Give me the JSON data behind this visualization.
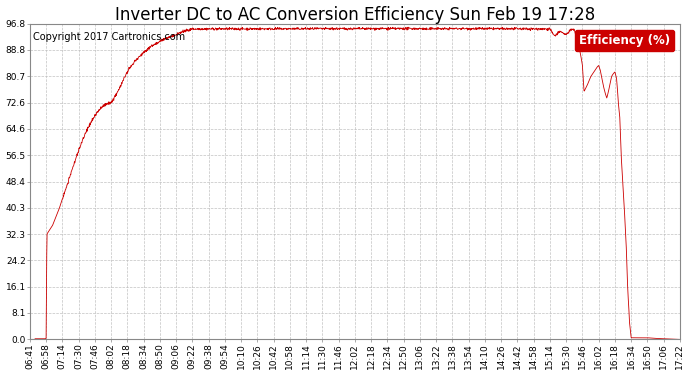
{
  "title": "Inverter DC to AC Conversion Efficiency Sun Feb 19 17:28",
  "copyright": "Copyright 2017 Cartronics.com",
  "legend_label": "Efficiency (%)",
  "legend_bg": "#cc0000",
  "legend_fg": "#ffffff",
  "line_color": "#cc0000",
  "bg_color": "#ffffff",
  "plot_bg": "#ffffff",
  "grid_color": "#bbbbbb",
  "ytick_labels": [
    "0.0",
    "8.1",
    "16.1",
    "24.2",
    "32.3",
    "40.3",
    "48.4",
    "56.5",
    "64.6",
    "72.6",
    "80.7",
    "88.8",
    "96.8"
  ],
  "ytick_values": [
    0.0,
    8.1,
    16.1,
    24.2,
    32.3,
    40.3,
    48.4,
    56.5,
    64.6,
    72.6,
    80.7,
    88.8,
    96.8
  ],
  "ymin": 0.0,
  "ymax": 96.8,
  "xtick_labels": [
    "06:41",
    "06:58",
    "07:14",
    "07:30",
    "07:46",
    "08:02",
    "08:18",
    "08:34",
    "08:50",
    "09:06",
    "09:22",
    "09:38",
    "09:54",
    "10:10",
    "10:26",
    "10:42",
    "10:58",
    "11:14",
    "11:30",
    "11:46",
    "12:02",
    "12:18",
    "12:34",
    "12:50",
    "13:06",
    "13:22",
    "13:38",
    "13:54",
    "14:10",
    "14:26",
    "14:42",
    "14:58",
    "15:14",
    "15:30",
    "15:46",
    "16:02",
    "16:18",
    "16:34",
    "16:50",
    "17:06",
    "17:22"
  ],
  "title_fontsize": 12,
  "copyright_fontsize": 7,
  "axis_fontsize": 6.5,
  "legend_fontsize": 8.5,
  "key_t": [
    0,
    0.3,
    0.31,
    1.0,
    1.05,
    1.4,
    1.8,
    2.2,
    2.6,
    3.0,
    3.4,
    3.8,
    4.2,
    4.6,
    5.0,
    5.3,
    5.6,
    6.0,
    6.5,
    7.0,
    7.5,
    8.0,
    8.5,
    9.0,
    9.5,
    10.0,
    24.0,
    24.5,
    25.0,
    25.5,
    26.0,
    32.0,
    32.3,
    32.6,
    33.0,
    33.3,
    33.5,
    33.6,
    33.7,
    33.8,
    33.9,
    34.0,
    34.05,
    34.1,
    34.3,
    34.5,
    34.7,
    34.9,
    35.0,
    35.1,
    35.2,
    35.3,
    35.4,
    35.5,
    35.6,
    35.7,
    35.8,
    35.9,
    36.0,
    36.1,
    36.15,
    36.2,
    36.3,
    36.35,
    36.4,
    36.5,
    36.6,
    36.7,
    36.75,
    36.8,
    36.85,
    36.9,
    37.0,
    37.5,
    38.0,
    38.5,
    39.0,
    39.5,
    40.0
  ],
  "key_v": [
    0,
    0,
    0.2,
    0.2,
    32.3,
    35,
    40,
    46,
    52,
    58,
    63,
    67,
    70,
    72,
    72.6,
    75,
    78,
    82,
    85.5,
    88,
    90,
    91.5,
    92.5,
    93.5,
    94.5,
    95.2,
    95.3,
    95.1,
    95.4,
    95.2,
    95.3,
    95.2,
    93.0,
    94.5,
    93.5,
    95.0,
    95.0,
    93.0,
    91.5,
    89.5,
    87.0,
    84.0,
    80.0,
    76.0,
    78.0,
    80.5,
    82.0,
    83.5,
    84.0,
    82.5,
    80.0,
    77.5,
    75.5,
    74.0,
    76.0,
    78.5,
    80.7,
    81.5,
    82.0,
    80.0,
    77.0,
    73.0,
    68.0,
    61.0,
    55.0,
    47.0,
    38.0,
    28.0,
    20.0,
    14.0,
    10.0,
    5.0,
    0.5,
    0.5,
    0.5,
    0.3,
    0.2,
    0.1,
    0.0
  ]
}
